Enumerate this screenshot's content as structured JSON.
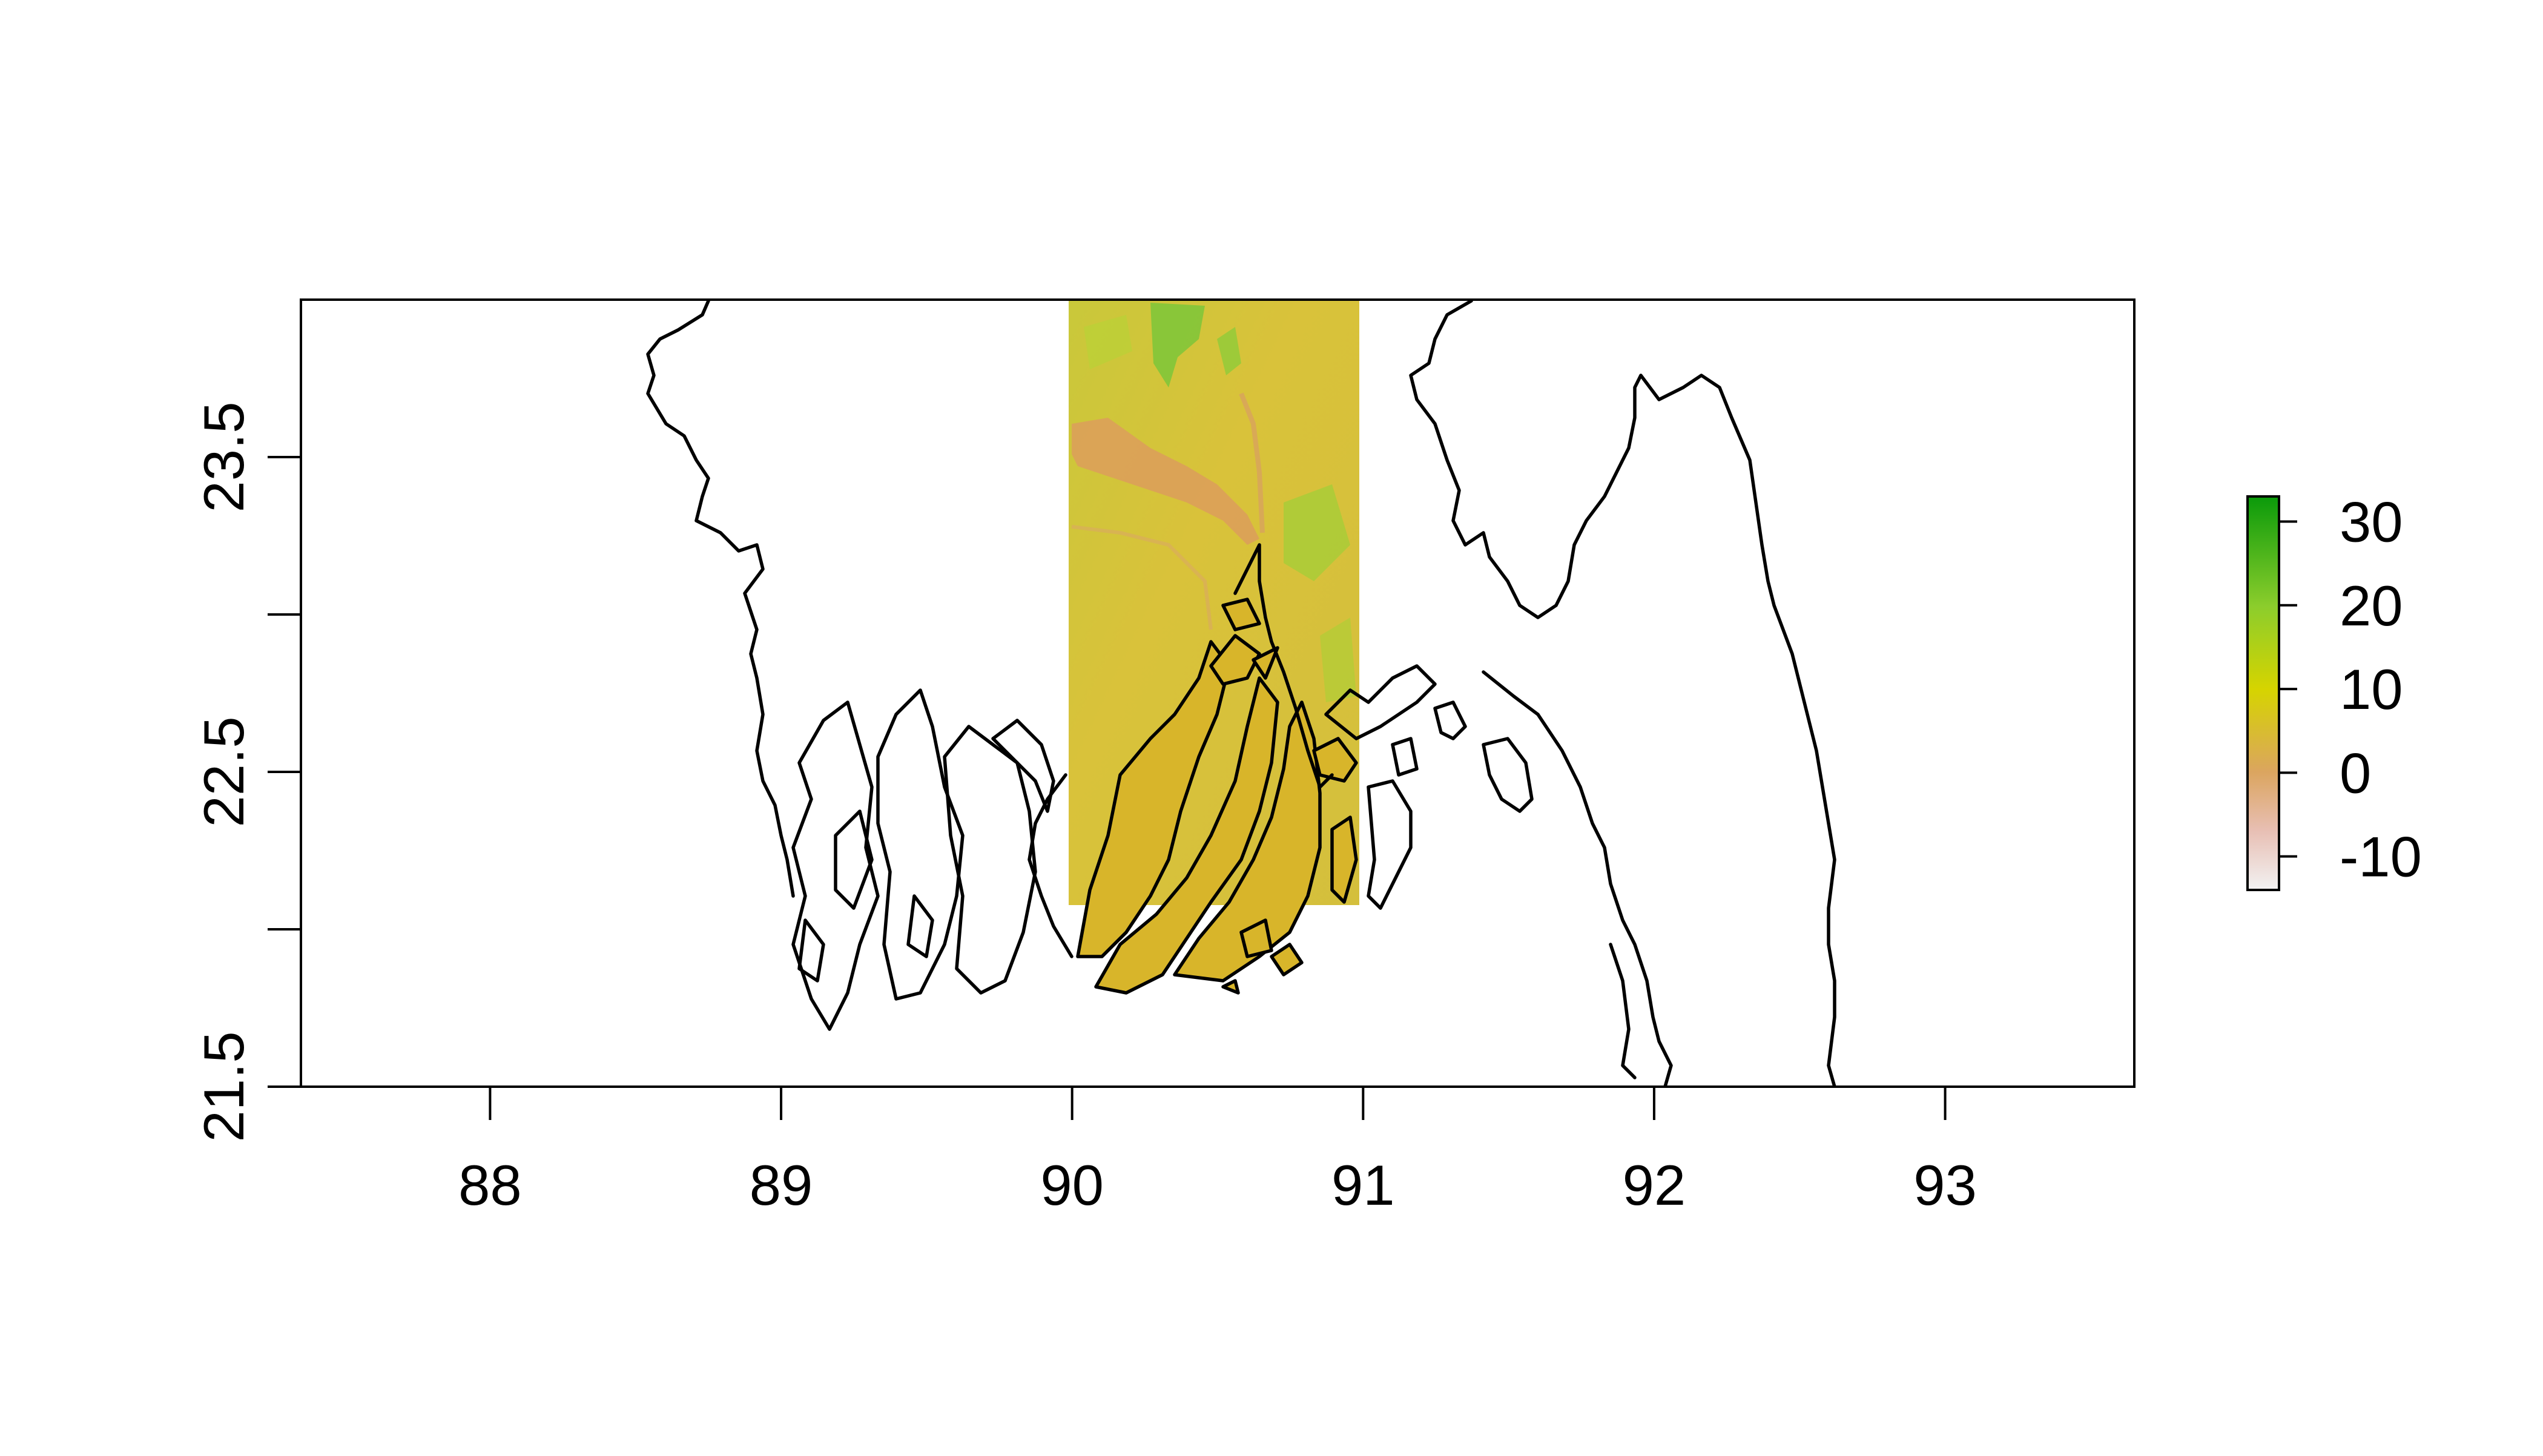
{
  "map": {
    "x_ticks": [
      "88",
      "89",
      "90",
      "91",
      "92",
      "93"
    ],
    "y_ticks": [
      "21.5",
      "22.5",
      "23.5"
    ],
    "x_range": [
      87.35,
      93.65
    ],
    "y_range": [
      21.5,
      24.0
    ],
    "raster_extent": {
      "lon": [
        90.0,
        91.0
      ],
      "lat": [
        22.0,
        24.0
      ]
    },
    "colors": {
      "raster_base": "#d9c23a",
      "raster_river": "#dba05a",
      "raster_high": "#7cc63a",
      "masked_land": "#d8b52a",
      "coastline": "#000000"
    }
  },
  "legend": {
    "labels": [
      "30",
      "20",
      "10",
      "0",
      "-10"
    ],
    "range": [
      -14,
      33
    ],
    "gradient": [
      {
        "v": -14,
        "color": "#f2f2f2"
      },
      {
        "v": -7,
        "color": "#e8bfb4"
      },
      {
        "v": 0,
        "color": "#dba55f"
      },
      {
        "v": 10,
        "color": "#d6d400"
      },
      {
        "v": 20,
        "color": "#8ccd2c"
      },
      {
        "v": 33,
        "color": "#0a9a0a"
      }
    ]
  }
}
